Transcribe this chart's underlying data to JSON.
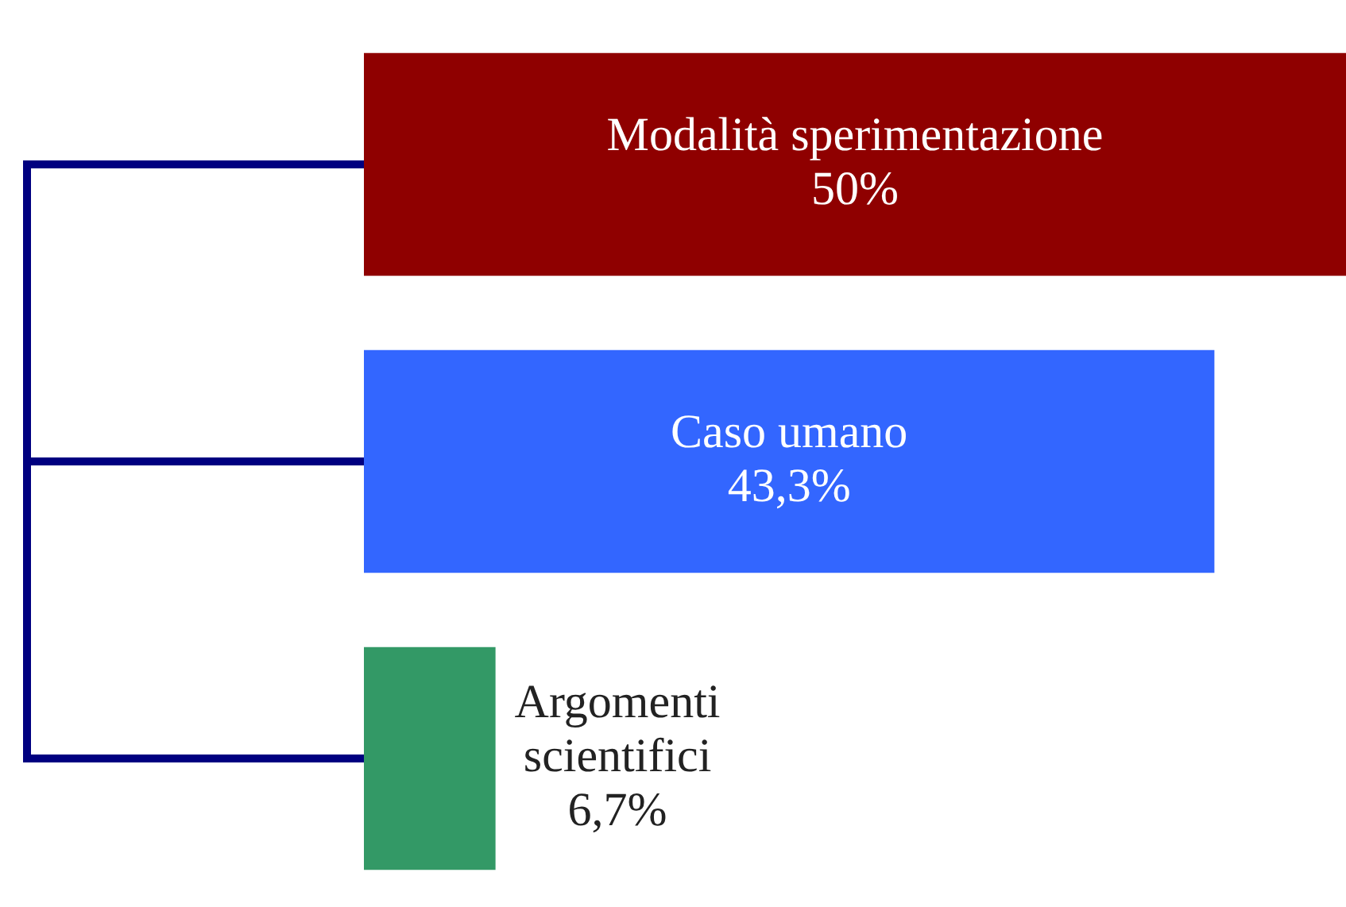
{
  "chart_data": {
    "type": "bar",
    "orientation": "horizontal",
    "categories": [
      "Modalità sperimentazione",
      "Caso umano",
      "Argomenti scientifici"
    ],
    "values": [
      50,
      43.3,
      6.7
    ],
    "value_labels": [
      "50%",
      "43,3%",
      "6,7%"
    ],
    "colors": [
      "#8f0000",
      "#3366ff",
      "#339966"
    ],
    "xlim": [
      0,
      50
    ],
    "tick_labels": false
  }
}
